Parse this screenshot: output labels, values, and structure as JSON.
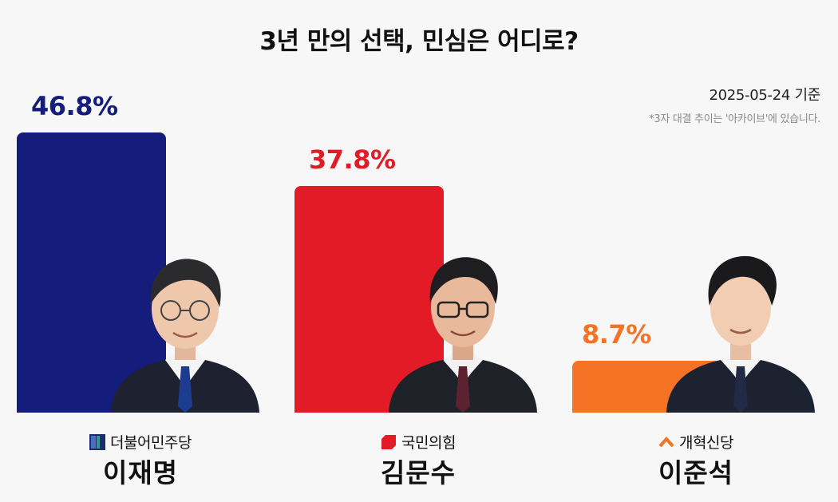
{
  "title": "3년 만의 선택, 민심은 어디로?",
  "date": "2025-05-24 기준",
  "note": "*3자 대결 추이는 '아카이브'에 있습니다.",
  "chart_data": {
    "type": "bar",
    "title": "3년 만의 선택, 민심은 어디로?",
    "unit": "%",
    "ylim": [
      0,
      50
    ],
    "categories": [
      "이재명",
      "김문수",
      "이준석"
    ],
    "values": [
      46.8,
      37.8,
      8.7
    ],
    "labels": [
      "46.8%",
      "37.8%",
      "8.7%"
    ],
    "parties": [
      "더불어민주당",
      "국민의힘",
      "개혁신당"
    ],
    "colors": [
      "#141c7c",
      "#e21b26",
      "#f57324"
    ],
    "party_icons": [
      "minjoo-party-logo-icon",
      "ppp-party-logo-icon",
      "reform-party-logo-icon"
    ],
    "grid": false,
    "legend": "none"
  }
}
